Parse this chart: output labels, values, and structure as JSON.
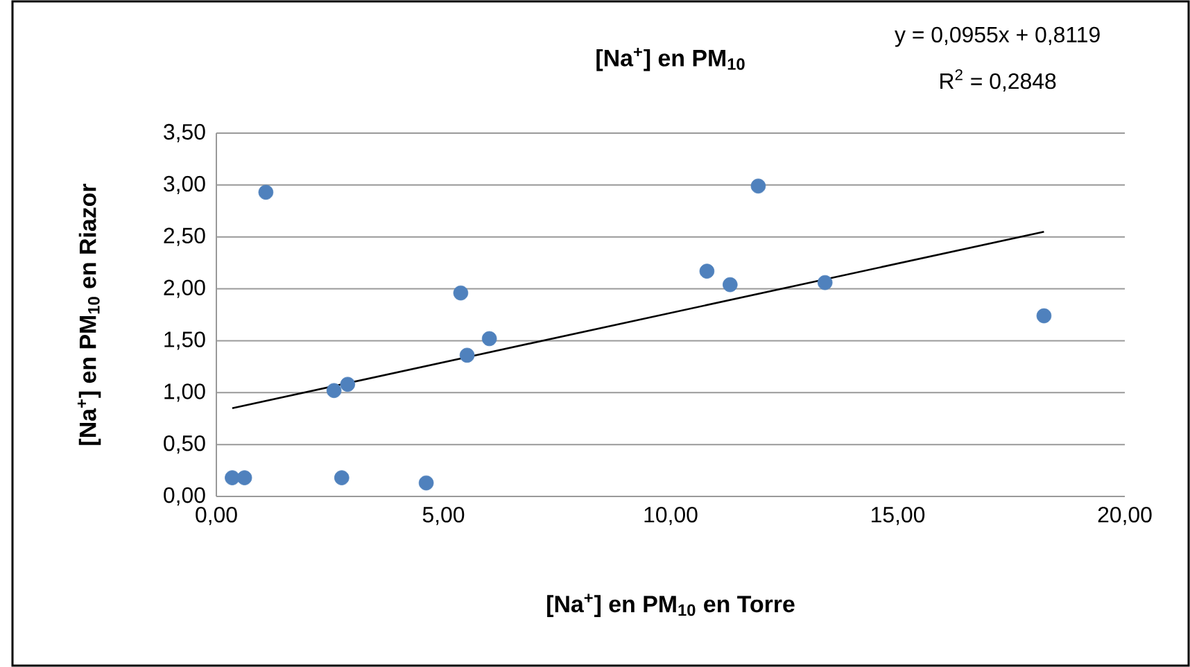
{
  "chart_data": {
    "type": "scatter",
    "title": "[Na$^{+}$] en PM$_{10}$",
    "xlabel": "[Na$^{+}$] en PM$_{10}$ en Torre",
    "ylabel": "[Na$^{+}$] en PM$_{10}$ en Riazor",
    "annotations": [
      "y = 0,0955x + 0,8119",
      "R$^{2}$ = 0,2848"
    ],
    "series": [
      {
        "color": "#4f81bd",
        "x": [
          0.35,
          0.62,
          1.09,
          2.59,
          2.89,
          2.76,
          4.62,
          5.38,
          5.52,
          6.01,
          10.8,
          11.31,
          11.93,
          13.4,
          18.22
        ],
        "values": [
          0.18,
          0.18,
          2.93,
          1.02,
          1.08,
          0.18,
          0.13,
          1.96,
          1.36,
          1.52,
          2.17,
          2.04,
          2.99,
          2.06,
          1.74
        ]
      },
      {
        "type": "line",
        "color": "#000000",
        "marker": "none",
        "x": [
          0.35,
          18.22
        ],
        "values": [
          0.85,
          2.55
        ]
      }
    ],
    "xlim": [
      0,
      20
    ],
    "ylim": [
      0,
      3.5
    ],
    "xticks": [
      {
        "value": 0,
        "label": "0,00"
      },
      {
        "value": 5,
        "label": "5,00"
      },
      {
        "value": 10,
        "label": "10,00"
      },
      {
        "value": 15,
        "label": "15,00"
      },
      {
        "value": 20,
        "label": "20,00"
      }
    ],
    "yticks": [
      {
        "value": 0,
        "label": "0,00"
      },
      {
        "value": 0.5,
        "label": "0,50"
      },
      {
        "value": 1,
        "label": "1,00"
      },
      {
        "value": 1.5,
        "label": "1,50"
      },
      {
        "value": 2,
        "label": "2,00"
      },
      {
        "value": 2.5,
        "label": "2,50"
      },
      {
        "value": 3,
        "label": "3,00"
      },
      {
        "value": 3.5,
        "label": "3,50"
      }
    ],
    "grid": "y",
    "marker": "circle"
  }
}
